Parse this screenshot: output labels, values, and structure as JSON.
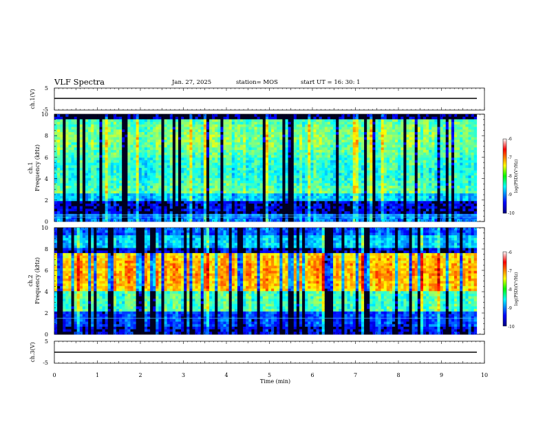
{
  "header": {
    "title": "VLF Spectra",
    "date": "Jan. 27, 2025",
    "station": "station= MOS",
    "start": "start UT =   16: 30: 1"
  },
  "chart_data": [
    {
      "type": "line",
      "panel": "ch1-waveform",
      "ylabel": "ch.1(V)",
      "ytick_labels": [
        "5",
        "-5"
      ],
      "ylim": [
        -5,
        5
      ],
      "xlim": [
        0,
        10
      ],
      "series": [
        {
          "x": [
            0,
            9.82
          ],
          "values": [
            0,
            0
          ]
        }
      ]
    },
    {
      "type": "heatmap",
      "panel": "ch1-spectrogram",
      "ylabel": "ch.1 Frequency (kHz)",
      "ylabel_lines": [
        "ch.1",
        "Frequency (kHz)"
      ],
      "ytick_labels": [
        "0",
        "2",
        "4",
        "6",
        "8",
        "10"
      ],
      "ylim": [
        0,
        10
      ],
      "xlim": [
        0,
        9.82
      ],
      "colorbar": {
        "label": "log(PSD)(V²/Hz)",
        "ticks": [
          "-6",
          "-7",
          "-8",
          "-9",
          "-10"
        ],
        "range": [
          -10,
          -6
        ]
      },
      "bands_khz": [
        0.4,
        0.6
      ],
      "typical_level": "green",
      "peak_band_khz": [
        3,
        9
      ]
    },
    {
      "type": "heatmap",
      "panel": "ch2-spectrogram",
      "ylabel": "ch.2 Frequency (kHz)",
      "ylabel_lines": [
        "ch.2",
        "Frequency (kHz)"
      ],
      "ytick_labels": [
        "0",
        "2",
        "4",
        "6",
        "8",
        "10"
      ],
      "ylim": [
        0,
        10
      ],
      "xlim": [
        0,
        9.82
      ],
      "colorbar": {
        "label": "log(PSD)(V²/Hz)",
        "ticks": [
          "-6",
          "-7",
          "-8",
          "-9",
          "-10"
        ],
        "range": [
          -10,
          -6
        ]
      },
      "bands_khz": [
        1.5
      ],
      "typical_level": "yellow-red",
      "peak_band_khz": [
        4,
        7.5
      ]
    },
    {
      "type": "line",
      "panel": "ch3-waveform",
      "ylabel": "ch.3(V)",
      "ytick_labels": [
        "5",
        "-5"
      ],
      "ylim": [
        -5,
        5
      ],
      "xlim": [
        0,
        10
      ],
      "xlabel": "Time (min)",
      "xtick_labels": [
        "0",
        "1",
        "2",
        "3",
        "4",
        "5",
        "6",
        "7",
        "8",
        "9",
        "10"
      ],
      "series": [
        {
          "x": [
            0,
            9.82
          ],
          "values": [
            0,
            0
          ]
        }
      ]
    }
  ]
}
